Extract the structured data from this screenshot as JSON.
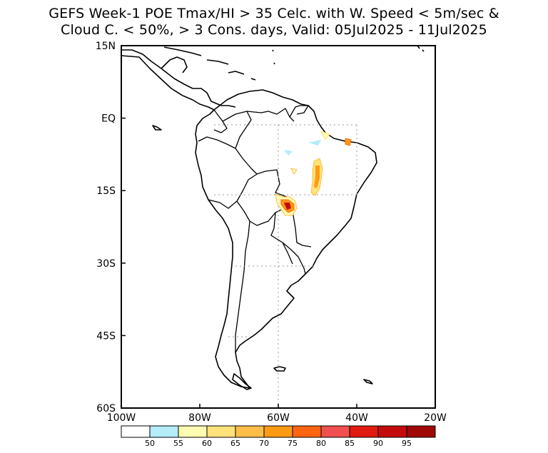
{
  "title_line1": "GEFS Week-1 POE Tmax/HI > 35 Celc. with W. Speed < 5m/sec &",
  "title_line2": "Cloud C. < 50%, > 3 Cons. days, Valid: 05Jul2025 - 11Jul2025",
  "map": {
    "lon_range": [
      -100,
      -20
    ],
    "lat_range": [
      -60,
      15
    ],
    "lat_ticks": [
      {
        "value": 15,
        "label": "15N"
      },
      {
        "value": 0,
        "label": "EQ"
      },
      {
        "value": -15,
        "label": "15S"
      },
      {
        "value": -30,
        "label": "30S"
      },
      {
        "value": -45,
        "label": "45S"
      },
      {
        "value": -60,
        "label": "60S"
      }
    ],
    "lon_ticks": [
      {
        "value": -100,
        "label": "100W"
      },
      {
        "value": -80,
        "label": "80W"
      },
      {
        "value": -60,
        "label": "60W"
      },
      {
        "value": -40,
        "label": "40W"
      },
      {
        "value": -20,
        "label": "20W"
      }
    ]
  },
  "colorbar": {
    "colors": [
      "#ffffff",
      "#b4ecf8",
      "#fffcb2",
      "#ffe27a",
      "#ffbe4a",
      "#ff9a12",
      "#ff6410",
      "#f05050",
      "#e11a10",
      "#c40b0b",
      "#a00808"
    ],
    "labels": [
      "50",
      "55",
      "60",
      "65",
      "70",
      "75",
      "80",
      "85",
      "90",
      "95"
    ]
  }
}
